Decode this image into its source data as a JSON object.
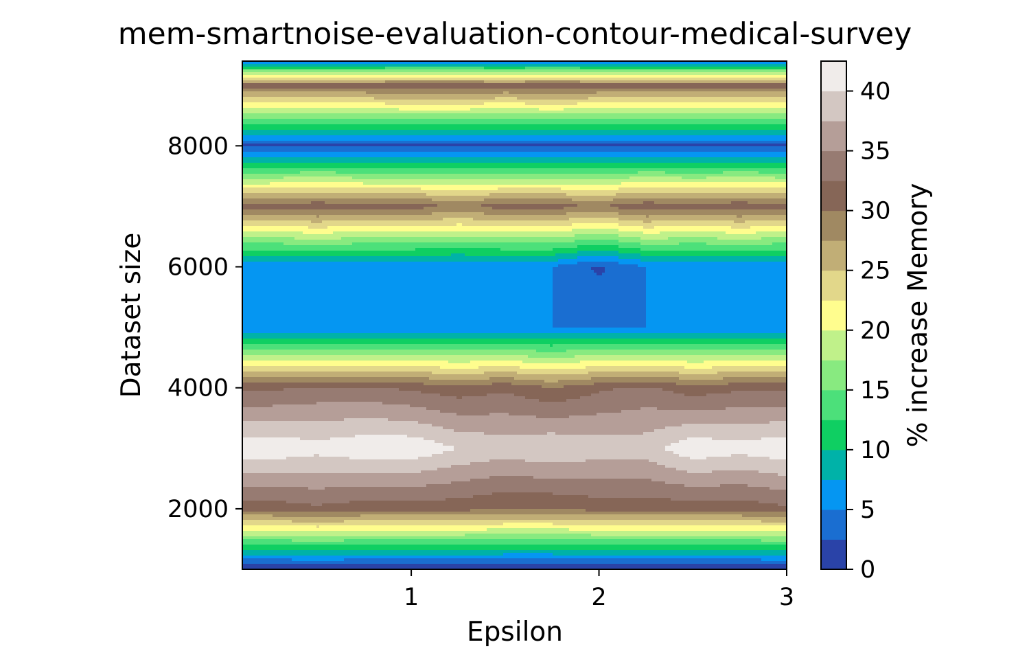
{
  "chart_data": {
    "type": "heatmap",
    "title": "mem-smartnoise-evaluation-contour-medical-survey",
    "xlabel": "Epsilon",
    "ylabel": "Dataset size",
    "colorbar_label": "% increase Memory",
    "xlim": [
      0.1,
      3.0
    ],
    "ylim": [
      1000,
      9400
    ],
    "x_ticks": [
      1,
      2,
      3
    ],
    "y_ticks": [
      2000,
      4000,
      6000,
      8000
    ],
    "colorbar_ticks": [
      0,
      5,
      10,
      15,
      20,
      25,
      30,
      35,
      40
    ],
    "colorbar_range": [
      0,
      42.5
    ],
    "contour_levels": [
      0,
      2.5,
      5,
      7.5,
      10,
      12.5,
      15,
      17.5,
      20,
      22.5,
      25,
      27.5,
      30,
      32.5,
      35,
      37.5,
      40,
      42.5
    ],
    "level_colors": [
      "#2a43a8",
      "#1a6ed1",
      "#0596f2",
      "#00b2a8",
      "#0fcf62",
      "#4ce07a",
      "#88ea80",
      "#c0f18a",
      "#fffd8e",
      "#e2d78a",
      "#c1ae76",
      "#a08962",
      "#866657",
      "#977b72",
      "#b59e98",
      "#d3c7c2",
      "#f0ecea"
    ],
    "x": [
      0.1,
      0.25,
      0.5,
      0.75,
      1.0,
      1.25,
      1.5,
      1.75,
      2.0,
      2.25,
      2.5,
      2.75,
      3.0
    ],
    "y": [
      1000,
      2000,
      3000,
      4000,
      5000,
      6000,
      7000,
      8000,
      9000,
      9400
    ],
    "z": [
      [
        0,
        0,
        0,
        0,
        0,
        0,
        0,
        0,
        0,
        0,
        0,
        0,
        0
      ],
      [
        31,
        31,
        32,
        31,
        31,
        31,
        30,
        30,
        31,
        31,
        31,
        31,
        32
      ],
      [
        42,
        42,
        41,
        42,
        42,
        40,
        39,
        40,
        39,
        39,
        42,
        41,
        42
      ],
      [
        32,
        32,
        33,
        33,
        32,
        31,
        32,
        30,
        32,
        33,
        31,
        32,
        32
      ],
      [
        5,
        5,
        5,
        5,
        5,
        5,
        5,
        5,
        5,
        5,
        5,
        5,
        5
      ],
      [
        5,
        5,
        5,
        5,
        5,
        5,
        5,
        5,
        2,
        5,
        5,
        5,
        5
      ],
      [
        31,
        31,
        32,
        31,
        31,
        30,
        31,
        31,
        30,
        32,
        31,
        32,
        31
      ],
      [
        2,
        2,
        2,
        2,
        2,
        2,
        2,
        2,
        2,
        2,
        2,
        2,
        2
      ],
      [
        31,
        31,
        31,
        31,
        32,
        32,
        31,
        32,
        31,
        31,
        31,
        31,
        31
      ],
      [
        5,
        5,
        5,
        5,
        5,
        5,
        5,
        5,
        5,
        5,
        5,
        5,
        5
      ]
    ]
  }
}
